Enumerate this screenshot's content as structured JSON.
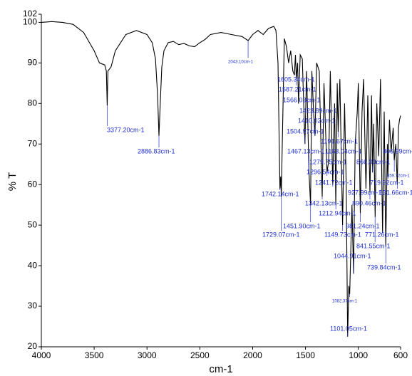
{
  "chart_data": {
    "type": "line",
    "x_label": "cm-1",
    "y_label": "% T",
    "xlim": [
      4000,
      600
    ],
    "ylim": [
      20,
      102
    ],
    "xticks": [
      4000,
      3500,
      3000,
      2500,
      2000,
      1500,
      1000,
      600
    ],
    "yticks": [
      20,
      30,
      40,
      50,
      60,
      70,
      80,
      90,
      100,
      102
    ],
    "series": [
      {
        "color": "#000000",
        "x": [
          4000,
          3900,
          3800,
          3700,
          3600,
          3500,
          3450,
          3400,
          3385,
          3377,
          3370,
          3340,
          3300,
          3200,
          3100,
          3000,
          2950,
          2920,
          2900,
          2887,
          2875,
          2860,
          2840,
          2800,
          2750,
          2700,
          2650,
          2600,
          2550,
          2500,
          2450,
          2400,
          2300,
          2200,
          2100,
          2043,
          2000,
          1950,
          1900,
          1850,
          1800,
          1780,
          1760,
          1742,
          1735,
          1729,
          1720,
          1700,
          1680,
          1660,
          1640,
          1620,
          1605,
          1595,
          1587,
          1575,
          1566,
          1550,
          1530,
          1505,
          1490,
          1467,
          1452,
          1440,
          1424,
          1410,
          1395,
          1370,
          1342,
          1325,
          1296,
          1280,
          1265,
          1242,
          1225,
          1213,
          1200,
          1191,
          1175,
          1163,
          1149,
          1130,
          1115,
          1101,
          1090,
          1082,
          1070,
          1060,
          1045,
          1030,
          1010,
          1000,
          981,
          965,
          950,
          928,
          910,
          890,
          875,
          866,
          855,
          841,
          825,
          807,
          790,
          771,
          755,
          740,
          725,
          720,
          705,
          690,
          670,
          660,
          645,
          632,
          620,
          610,
          600
        ],
        "values": [
          100,
          100.2,
          100,
          99.5,
          97.5,
          93,
          90,
          89.5,
          88,
          79.5,
          88,
          89,
          93,
          97,
          98,
          97,
          95,
          91,
          82,
          72,
          80,
          89,
          93,
          95,
          95.3,
          94.5,
          94.8,
          94.2,
          94,
          95,
          95.8,
          97,
          97.5,
          97,
          96.5,
          95.5,
          97,
          98,
          97,
          98.5,
          99,
          98,
          90,
          59,
          62,
          57,
          70,
          96,
          94,
          90,
          93,
          88,
          87,
          92,
          86,
          90,
          80,
          92,
          91,
          70,
          88,
          63,
          55,
          88,
          78,
          72,
          90,
          88,
          57,
          85,
          63,
          66,
          88,
          60,
          80,
          55,
          85,
          73,
          86,
          70,
          50,
          80,
          60,
          22.5,
          35,
          33,
          45,
          55,
          38,
          70,
          78,
          85,
          53,
          78,
          86,
          59,
          82,
          58,
          82,
          63,
          75,
          52,
          80,
          67,
          86,
          48,
          78,
          45,
          70,
          62,
          76,
          68,
          74,
          66,
          70,
          60,
          74,
          76,
          77
        ]
      }
    ],
    "annotations": [
      {
        "text": "3377.20cm-1",
        "x": 3377.2,
        "y": 79.5
      },
      {
        "text": "2886.83cm-1",
        "x": 2886.83,
        "y": 72
      },
      {
        "text": "2043.10cm-1",
        "x": 2043.1,
        "y": 95.5
      },
      {
        "text": "1605.34cm-1",
        "x": 1605.34,
        "y": 87
      },
      {
        "text": "1587.21cm-1",
        "x": 1587.21,
        "y": 86
      },
      {
        "text": "1566.03cm-1",
        "x": 1566.03,
        "y": 80
      },
      {
        "text": "1423.89cm-1",
        "x": 1423.89,
        "y": 78
      },
      {
        "text": "1410.02cm-1",
        "x": 1410.02,
        "y": 72
      },
      {
        "text": "1504.97cm-1",
        "x": 1504.97,
        "y": 70
      },
      {
        "text": "1191.67cm-1",
        "x": 1191.67,
        "y": 73
      },
      {
        "text": "1467.13cm-1",
        "x": 1467.13,
        "y": 63
      },
      {
        "text": "1163.04cm-1",
        "x": 1163.04,
        "y": 70
      },
      {
        "text": "866.09cm-1",
        "x": 866.09,
        "y": 63
      },
      {
        "text": "806.99cm-1",
        "x": 806.99,
        "y": 67
      },
      {
        "text": "1279.75cm-1",
        "x": 1279.75,
        "y": 66
      },
      {
        "text": "1296.54cm-1",
        "x": 1296.54,
        "y": 63
      },
      {
        "text": "659.72cm-1",
        "x": 659.72,
        "y": 66
      },
      {
        "text": "1241.72cm-1",
        "x": 1241.72,
        "y": 60
      },
      {
        "text": "719.92cm-1",
        "x": 719.92,
        "y": 62
      },
      {
        "text": "927.99cm-1",
        "x": 927.99,
        "y": 59
      },
      {
        "text": "631.66cm-1",
        "x": 631.66,
        "y": 60
      },
      {
        "text": "890.46cm-1",
        "x": 890.46,
        "y": 58
      },
      {
        "text": "1342.13cm-1",
        "x": 1342.13,
        "y": 57
      },
      {
        "text": "1742.14cm-1",
        "x": 1742.14,
        "y": 59
      },
      {
        "text": "1212.94cm-1",
        "x": 1212.94,
        "y": 55
      },
      {
        "text": "1451.90cm-1",
        "x": 1451.9,
        "y": 55
      },
      {
        "text": "1729.07cm-1",
        "x": 1729.07,
        "y": 57
      },
      {
        "text": "981.24cm-1",
        "x": 981.24,
        "y": 53
      },
      {
        "text": "771.26cm-1",
        "x": 771.26,
        "y": 48
      },
      {
        "text": "1149.73cm-1",
        "x": 1149.73,
        "y": 50
      },
      {
        "text": "841.55cm-1",
        "x": 841.55,
        "y": 52
      },
      {
        "text": "1044.91cm-1",
        "x": 1044.91,
        "y": 38
      },
      {
        "text": "739.84cm-1",
        "x": 739.84,
        "y": 45
      },
      {
        "text": "1082.37cm-1",
        "x": 1082.37,
        "y": 33
      },
      {
        "text": "1101.05cm-1",
        "x": 1101.05,
        "y": 22.5
      }
    ]
  }
}
